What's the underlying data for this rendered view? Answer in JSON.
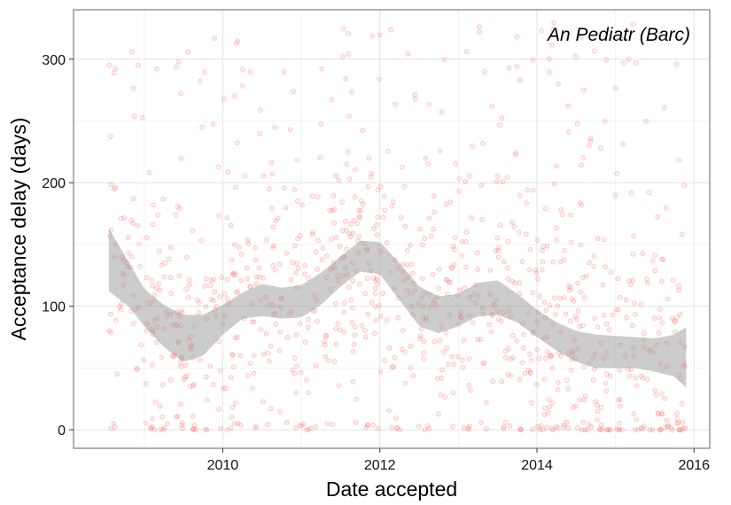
{
  "chart_data": {
    "type": "scatter",
    "xlabel": "Date accepted",
    "ylabel": "Acceptance delay (days)",
    "annotation": "An Pediatr (Barc)",
    "x_ticks": [
      2010,
      2012,
      2014,
      2016
    ],
    "y_ticks": [
      0,
      100,
      200,
      300
    ],
    "xlim": [
      2008.1,
      2016.2
    ],
    "ylim": [
      -15,
      340
    ],
    "grid": true,
    "point_color": "#F8766D",
    "band_color": "#999999",
    "scatter": {
      "x_range": [
        2008.55,
        2015.9
      ],
      "n_points": 1100,
      "note": "points scattered between 0 and 330 days, concentrated below 150"
    },
    "smooth": {
      "x": [
        2008.55,
        2008.8,
        2009.0,
        2009.25,
        2009.5,
        2009.75,
        2010.0,
        2010.25,
        2010.5,
        2010.75,
        2011.0,
        2011.25,
        2011.5,
        2011.75,
        2012.0,
        2012.25,
        2012.5,
        2012.75,
        2013.0,
        2013.25,
        2013.5,
        2013.75,
        2014.0,
        2014.25,
        2014.5,
        2014.75,
        2015.0,
        2015.25,
        2015.5,
        2015.75,
        2015.9
      ],
      "fit": [
        138,
        118,
        99,
        84,
        74,
        76,
        89,
        101,
        105,
        103,
        104,
        114,
        128,
        140,
        139,
        120,
        100,
        93,
        97,
        105,
        107,
        98,
        86,
        75,
        68,
        64,
        63,
        62,
        60,
        60,
        58
      ],
      "lower": [
        112,
        100,
        84,
        67,
        55,
        60,
        77,
        90,
        92,
        90,
        91,
        101,
        116,
        128,
        126,
        105,
        84,
        78,
        84,
        92,
        93,
        87,
        75,
        64,
        55,
        50,
        50,
        50,
        47,
        43,
        34
      ],
      "upper": [
        163,
        136,
        114,
        101,
        93,
        93,
        101,
        111,
        118,
        115,
        117,
        127,
        140,
        153,
        152,
        135,
        116,
        108,
        110,
        119,
        121,
        110,
        97,
        87,
        80,
        77,
        76,
        75,
        74,
        77,
        83
      ]
    }
  }
}
